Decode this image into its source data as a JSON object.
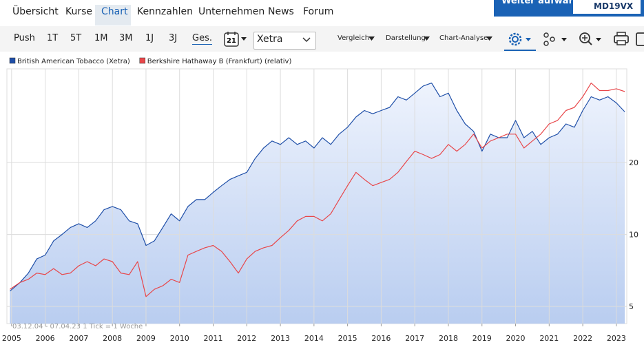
{
  "nav": [
    "Übersicht",
    "Kurse",
    "Chart",
    "Kennzahlen",
    "Unternehmen",
    "News",
    "Forum"
  ],
  "banner": {
    "text": "Weiter aufwärts!",
    "code": "MD19VX"
  },
  "toolbar": {
    "periods": [
      "Push",
      "1T",
      "5T",
      "1M",
      "3M",
      "1J",
      "3J",
      "Ges."
    ],
    "calendar_day": "21",
    "exchange": "Xetra",
    "menus": [
      "Vergleich",
      "Darstellung",
      "Chart-Analyse"
    ]
  },
  "chart_data": {
    "type": "line",
    "annotation": "03.12.04 - 07.04.23   1 Tick = 1 Woche",
    "log_scale": true,
    "grid": true,
    "legend_position": "top-left",
    "area_under": "British American Tobacco (Xetra)",
    "x": [
      2004.95,
      2005.25,
      2005.5,
      2005.75,
      2006.0,
      2006.25,
      2006.5,
      2006.75,
      2007.0,
      2007.25,
      2007.5,
      2007.75,
      2008.0,
      2008.25,
      2008.5,
      2008.75,
      2009.0,
      2009.25,
      2009.5,
      2009.75,
      2010.0,
      2010.25,
      2010.5,
      2010.75,
      2011.0,
      2011.25,
      2011.5,
      2011.75,
      2012.0,
      2012.25,
      2012.5,
      2012.75,
      2013.0,
      2013.25,
      2013.5,
      2013.75,
      2014.0,
      2014.25,
      2014.5,
      2014.75,
      2015.0,
      2015.25,
      2015.5,
      2015.75,
      2016.0,
      2016.25,
      2016.5,
      2016.75,
      2017.0,
      2017.25,
      2017.5,
      2017.75,
      2018.0,
      2018.25,
      2018.5,
      2018.75,
      2019.0,
      2019.25,
      2019.5,
      2019.75,
      2020.0,
      2020.25,
      2020.5,
      2020.75,
      2021.0,
      2021.25,
      2021.5,
      2021.75,
      2022.0,
      2022.25,
      2022.5,
      2022.75,
      2023.0,
      2023.25
    ],
    "xlim": [
      2004.86,
      2023.31
    ],
    "xticks": [
      2005,
      2006,
      2007,
      2008,
      2009,
      2010,
      2011,
      2012,
      2013,
      2014,
      2015,
      2016,
      2017,
      2018,
      2019,
      2020,
      2021,
      2022,
      2023
    ],
    "ylim": [
      4.24,
      49.3
    ],
    "yticks": [
      5,
      10,
      20
    ],
    "series": [
      {
        "name": "British American Tobacco (Xetra)",
        "color": "#1f4fa8",
        "values": [
          5.8,
          6.3,
          6.9,
          7.9,
          8.2,
          9.4,
          10.0,
          10.7,
          11.1,
          10.7,
          11.4,
          12.7,
          13.1,
          12.7,
          11.4,
          11.1,
          9.0,
          9.4,
          10.7,
          12.2,
          11.4,
          13.1,
          14.0,
          14.0,
          15.0,
          16.0,
          17.0,
          17.6,
          18.2,
          20.8,
          23.0,
          24.6,
          23.8,
          25.4,
          23.8,
          24.6,
          23.0,
          25.4,
          23.8,
          26.3,
          28.1,
          31.0,
          33.0,
          32.0,
          33.0,
          34.0,
          37.7,
          36.5,
          39.0,
          41.8,
          43.0,
          37.7,
          39.0,
          33.0,
          29.0,
          27.0,
          22.3,
          26.3,
          25.4,
          25.4,
          30.0,
          25.4,
          27.0,
          23.8,
          25.4,
          26.3,
          29.0,
          28.1,
          33.0,
          37.7,
          36.5,
          37.7,
          35.5,
          32.6
        ]
      },
      {
        "name": "Berkshire Hathaway B (Frankfurt) (relativ)",
        "color": "#e8474a",
        "values": [
          5.9,
          6.3,
          6.5,
          6.9,
          6.8,
          7.2,
          6.8,
          6.9,
          7.4,
          7.7,
          7.4,
          7.9,
          7.7,
          6.9,
          6.8,
          7.7,
          5.5,
          5.9,
          6.1,
          6.5,
          6.3,
          8.2,
          8.5,
          8.8,
          9.0,
          8.5,
          7.7,
          6.9,
          7.9,
          8.5,
          8.8,
          9.0,
          9.7,
          10.4,
          11.4,
          11.9,
          11.9,
          11.4,
          12.2,
          14.0,
          16.0,
          18.2,
          17.0,
          16.0,
          16.5,
          17.0,
          18.2,
          20.2,
          22.3,
          21.6,
          20.8,
          21.6,
          23.8,
          22.3,
          23.8,
          26.3,
          23.0,
          24.6,
          25.4,
          26.3,
          26.3,
          23.0,
          24.6,
          26.3,
          29.0,
          30.0,
          33.0,
          34.0,
          37.7,
          43.0,
          40.0,
          40.0,
          40.7,
          39.6
        ]
      }
    ]
  }
}
